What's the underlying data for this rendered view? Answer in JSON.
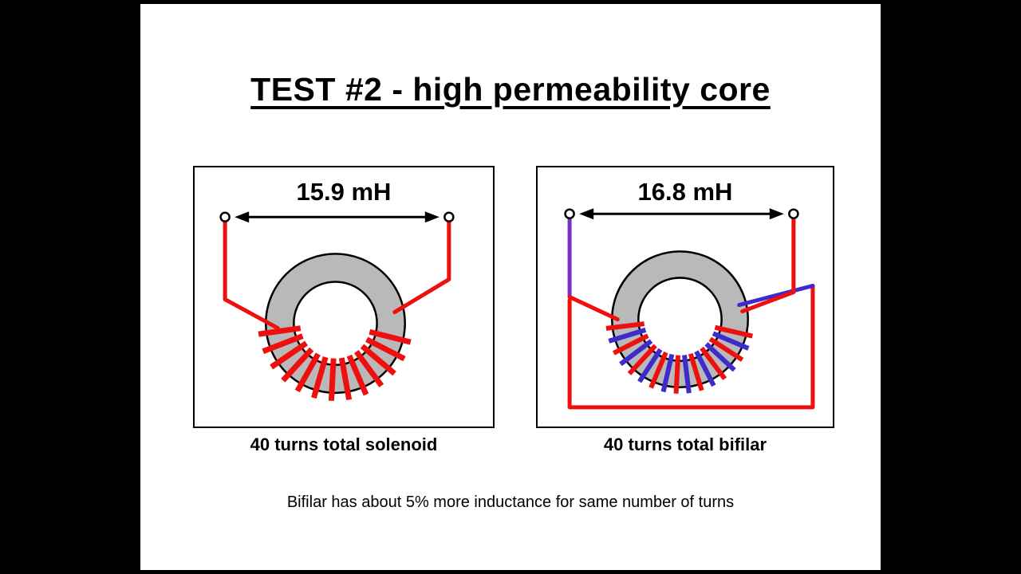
{
  "slide": {
    "title": "TEST #2 - high permeability core",
    "caption": "Bifilar has about 5% more inductance for same number of turns",
    "left_diagram": {
      "inductance": "15.9 mH",
      "label": "40 turns total solenoid"
    },
    "right_diagram": {
      "inductance": "16.8 mH",
      "label": "40 turns total bifilar"
    }
  },
  "colors": {
    "wire_red": "#ee0f0f",
    "wire_blue": "#3d2bcc",
    "wire_purple": "#7a30c9",
    "core_gray": "#b9b9b9",
    "ink": "#000000",
    "slide_bg": "#ffffff",
    "letterbox": "#000000"
  }
}
